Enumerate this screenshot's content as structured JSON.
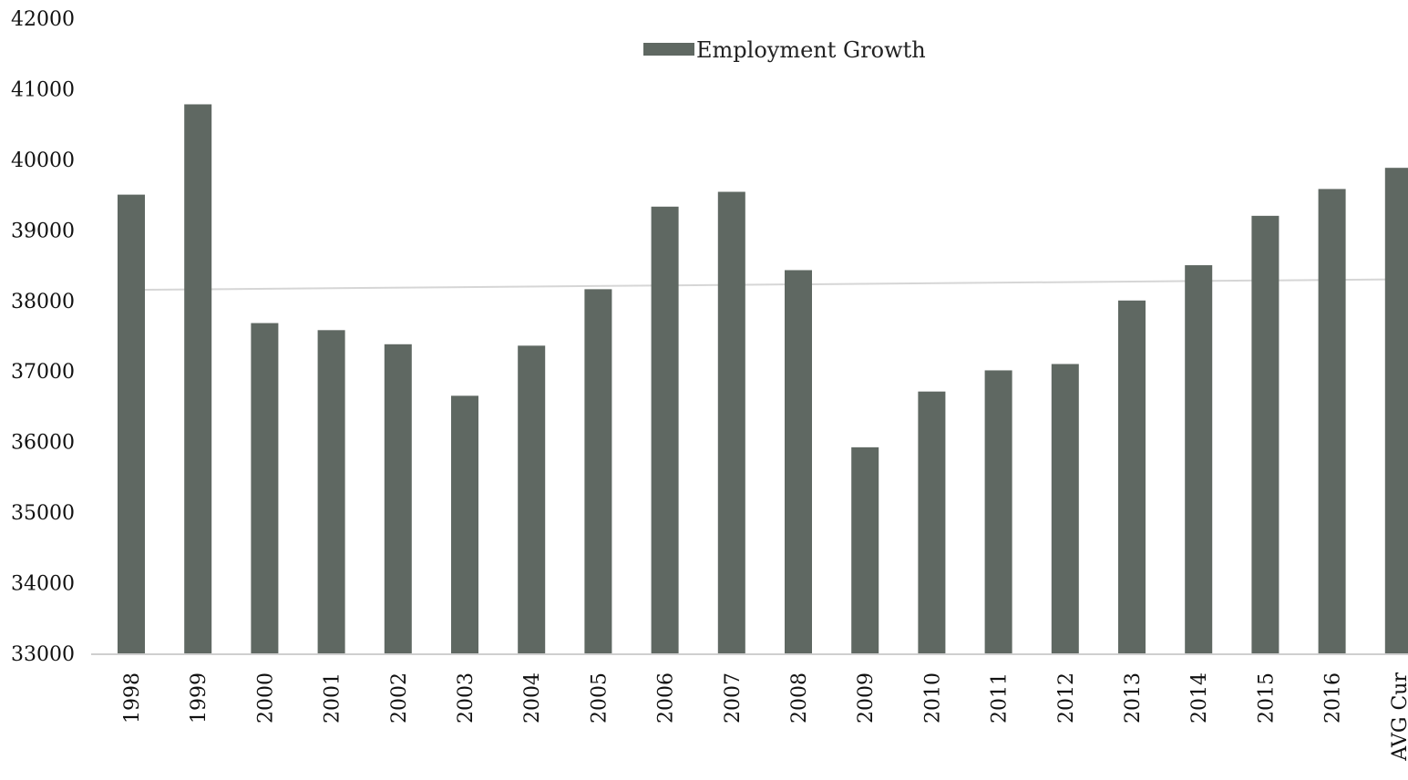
{
  "chart_data": {
    "type": "bar",
    "title": "",
    "xlabel": "",
    "ylabel": "",
    "ylim": [
      33000,
      42000
    ],
    "yticks": [
      33000,
      34000,
      35000,
      36000,
      37000,
      38000,
      39000,
      40000,
      41000,
      42000
    ],
    "grid": false,
    "legend_position": "top-center",
    "categories": [
      "1998",
      "1999",
      "2000",
      "2001",
      "2002",
      "2003",
      "2004",
      "2005",
      "2006",
      "2007",
      "2008",
      "2009",
      "2010",
      "2011",
      "2012",
      "2013",
      "2014",
      "2015",
      "2016",
      "AVG Cur"
    ],
    "series": [
      {
        "name": "Employment Growth",
        "color": "#5f6862",
        "values": [
          39500,
          40780,
          37680,
          37580,
          37380,
          36650,
          37360,
          38160,
          39330,
          39540,
          38430,
          35920,
          36710,
          37010,
          37100,
          38000,
          38500,
          39200,
          39580,
          39880
        ]
      }
    ],
    "average_line": {
      "values": [
        38150,
        38300
      ],
      "color": "#d6d6d6"
    }
  }
}
